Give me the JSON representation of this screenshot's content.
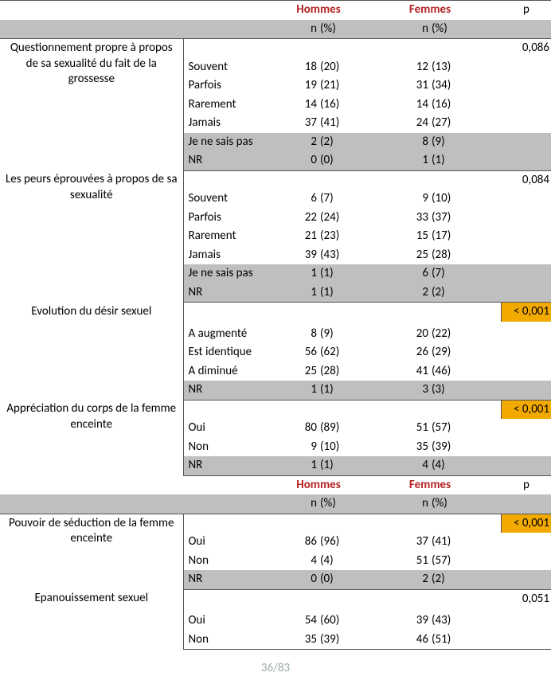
{
  "headers": {
    "hommes": "Hommes",
    "femmes": "Femmes",
    "p": "p",
    "n": "n",
    "pct": "(%)"
  },
  "sections": [
    {
      "key": "q1",
      "question": "Questionnement propre à propos de sa sexualité du fait de la grossesse",
      "p": "0,086",
      "p_highlight": false,
      "rows": [
        {
          "label": "Souvent",
          "hn": 18,
          "hp": "(20)",
          "fn": 12,
          "fp": "(13)",
          "gray": false
        },
        {
          "label": "Parfois",
          "hn": 19,
          "hp": "(21)",
          "fn": 31,
          "fp": "(34)",
          "gray": false
        },
        {
          "label": "Rarement",
          "hn": 14,
          "hp": "(16)",
          "fn": 14,
          "fp": "(16)",
          "gray": false
        },
        {
          "label": "Jamais",
          "hn": 37,
          "hp": "(41)",
          "fn": 24,
          "fp": "(27)",
          "gray": false
        },
        {
          "label": "Je ne sais pas",
          "hn": 2,
          "hp": "(2)",
          "fn": 8,
          "fp": "(9)",
          "gray": true
        },
        {
          "label": "NR",
          "hn": 0,
          "hp": "(0)",
          "fn": 1,
          "fp": "(1)",
          "gray": true
        }
      ]
    },
    {
      "key": "q2",
      "question": "Les peurs éprouvées à propos de sa sexualité",
      "p": "0,084",
      "p_highlight": false,
      "rows": [
        {
          "label": "Souvent",
          "hn": 6,
          "hp": "(7)",
          "fn": 9,
          "fp": "(10)",
          "gray": false
        },
        {
          "label": "Parfois",
          "hn": 22,
          "hp": "(24)",
          "fn": 33,
          "fp": "(37)",
          "gray": false
        },
        {
          "label": "Rarement",
          "hn": 21,
          "hp": "(23)",
          "fn": 15,
          "fp": "(17)",
          "gray": false
        },
        {
          "label": "Jamais",
          "hn": 39,
          "hp": "(43)",
          "fn": 25,
          "fp": "(28)",
          "gray": false
        },
        {
          "label": "Je ne sais pas",
          "hn": 1,
          "hp": "(1)",
          "fn": 6,
          "fp": "(7)",
          "gray": true
        },
        {
          "label": "NR",
          "hn": 1,
          "hp": "(1)",
          "fn": 2,
          "fp": "(2)",
          "gray": true
        }
      ]
    },
    {
      "key": "q3",
      "question": "Evolution du désir sexuel",
      "p": "< 0,001",
      "p_highlight": true,
      "rows": [
        {
          "label": "",
          "hn": "",
          "hp": "",
          "fn": "",
          "fp": "",
          "gray": false,
          "spacer": true
        },
        {
          "label": "A augmenté",
          "hn": 8,
          "hp": "(9)",
          "fn": 20,
          "fp": "(22)",
          "gray": false
        },
        {
          "label": "Est identique",
          "hn": 56,
          "hp": "(62)",
          "fn": 26,
          "fp": "(29)",
          "gray": false
        },
        {
          "label": "A diminué",
          "hn": 25,
          "hp": "(28)",
          "fn": 41,
          "fp": "(46)",
          "gray": false
        },
        {
          "label": "NR",
          "hn": 1,
          "hp": "(1)",
          "fn": 3,
          "fp": "(3)",
          "gray": true
        }
      ]
    },
    {
      "key": "q4",
      "question": "Appréciation du corps de la femme enceinte",
      "p": "< 0,001",
      "p_highlight": true,
      "rows": [
        {
          "label": "Oui",
          "hn": 80,
          "hp": "(89)",
          "fn": 51,
          "fp": "(57)",
          "gray": false
        },
        {
          "label": "Non",
          "hn": 9,
          "hp": "(10)",
          "fn": 35,
          "fp": "(39)",
          "gray": false
        },
        {
          "label": "NR",
          "hn": 1,
          "hp": "(1)",
          "fn": 4,
          "fp": "(4)",
          "gray": true
        }
      ]
    }
  ],
  "second_header_after": "q4",
  "sections2": [
    {
      "key": "q5",
      "question": "Pouvoir de séduction de la femme enceinte",
      "p": "< 0,001",
      "p_highlight": true,
      "rows": [
        {
          "label": "Oui",
          "hn": 86,
          "hp": "(96)",
          "fn": 37,
          "fp": "(41)",
          "gray": false
        },
        {
          "label": "Non",
          "hn": 4,
          "hp": "(4)",
          "fn": 51,
          "fp": "(57)",
          "gray": false
        },
        {
          "label": "NR",
          "hn": 0,
          "hp": "(0)",
          "fn": 2,
          "fp": "(2)",
          "gray": true
        }
      ]
    },
    {
      "key": "q6",
      "question": "Epanouissement sexuel",
      "p": "0,051",
      "p_highlight": false,
      "rows": [
        {
          "label": "",
          "hn": "",
          "hp": "",
          "fn": "",
          "fp": "",
          "gray": false,
          "spacer": true
        },
        {
          "label": "Oui",
          "hn": 54,
          "hp": "(60)",
          "fn": 39,
          "fp": "(43)",
          "gray": false
        },
        {
          "label": "Non",
          "hn": 35,
          "hp": "(39)",
          "fn": 46,
          "fp": "(51)",
          "gray": false
        }
      ]
    }
  ],
  "footer": "36/83"
}
